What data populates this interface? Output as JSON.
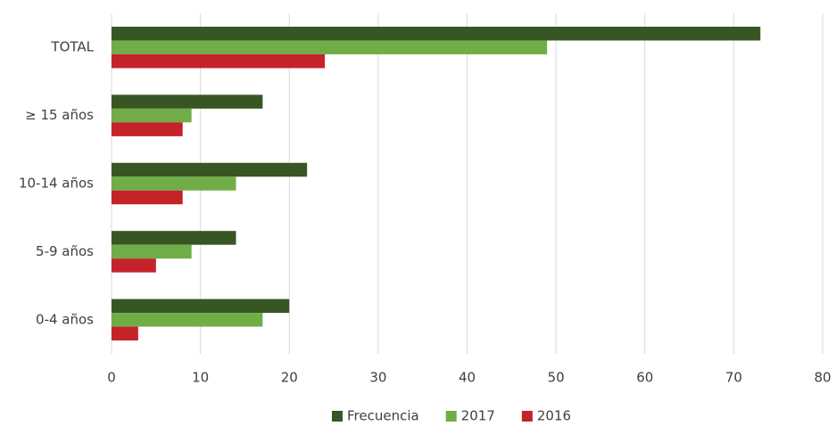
{
  "chart_data": {
    "type": "hbar",
    "categories": [
      "TOTAL",
      "≥ 15 años",
      "10-14 años",
      "5-9 años",
      "0-4 años"
    ],
    "series": [
      {
        "name": "Frecuencia",
        "color": "#375623",
        "values": [
          73,
          17,
          22,
          14,
          20
        ]
      },
      {
        "name": "2017",
        "color": "#70ad47",
        "values": [
          49,
          9,
          14,
          9,
          17
        ]
      },
      {
        "name": "2016",
        "color": "#c5232a",
        "values": [
          24,
          8,
          8,
          5,
          3
        ]
      }
    ],
    "xlim": [
      0,
      80
    ],
    "xticks": [
      0,
      10,
      20,
      30,
      40,
      50,
      60,
      70,
      80
    ],
    "grid": true,
    "legend": "bottom"
  }
}
